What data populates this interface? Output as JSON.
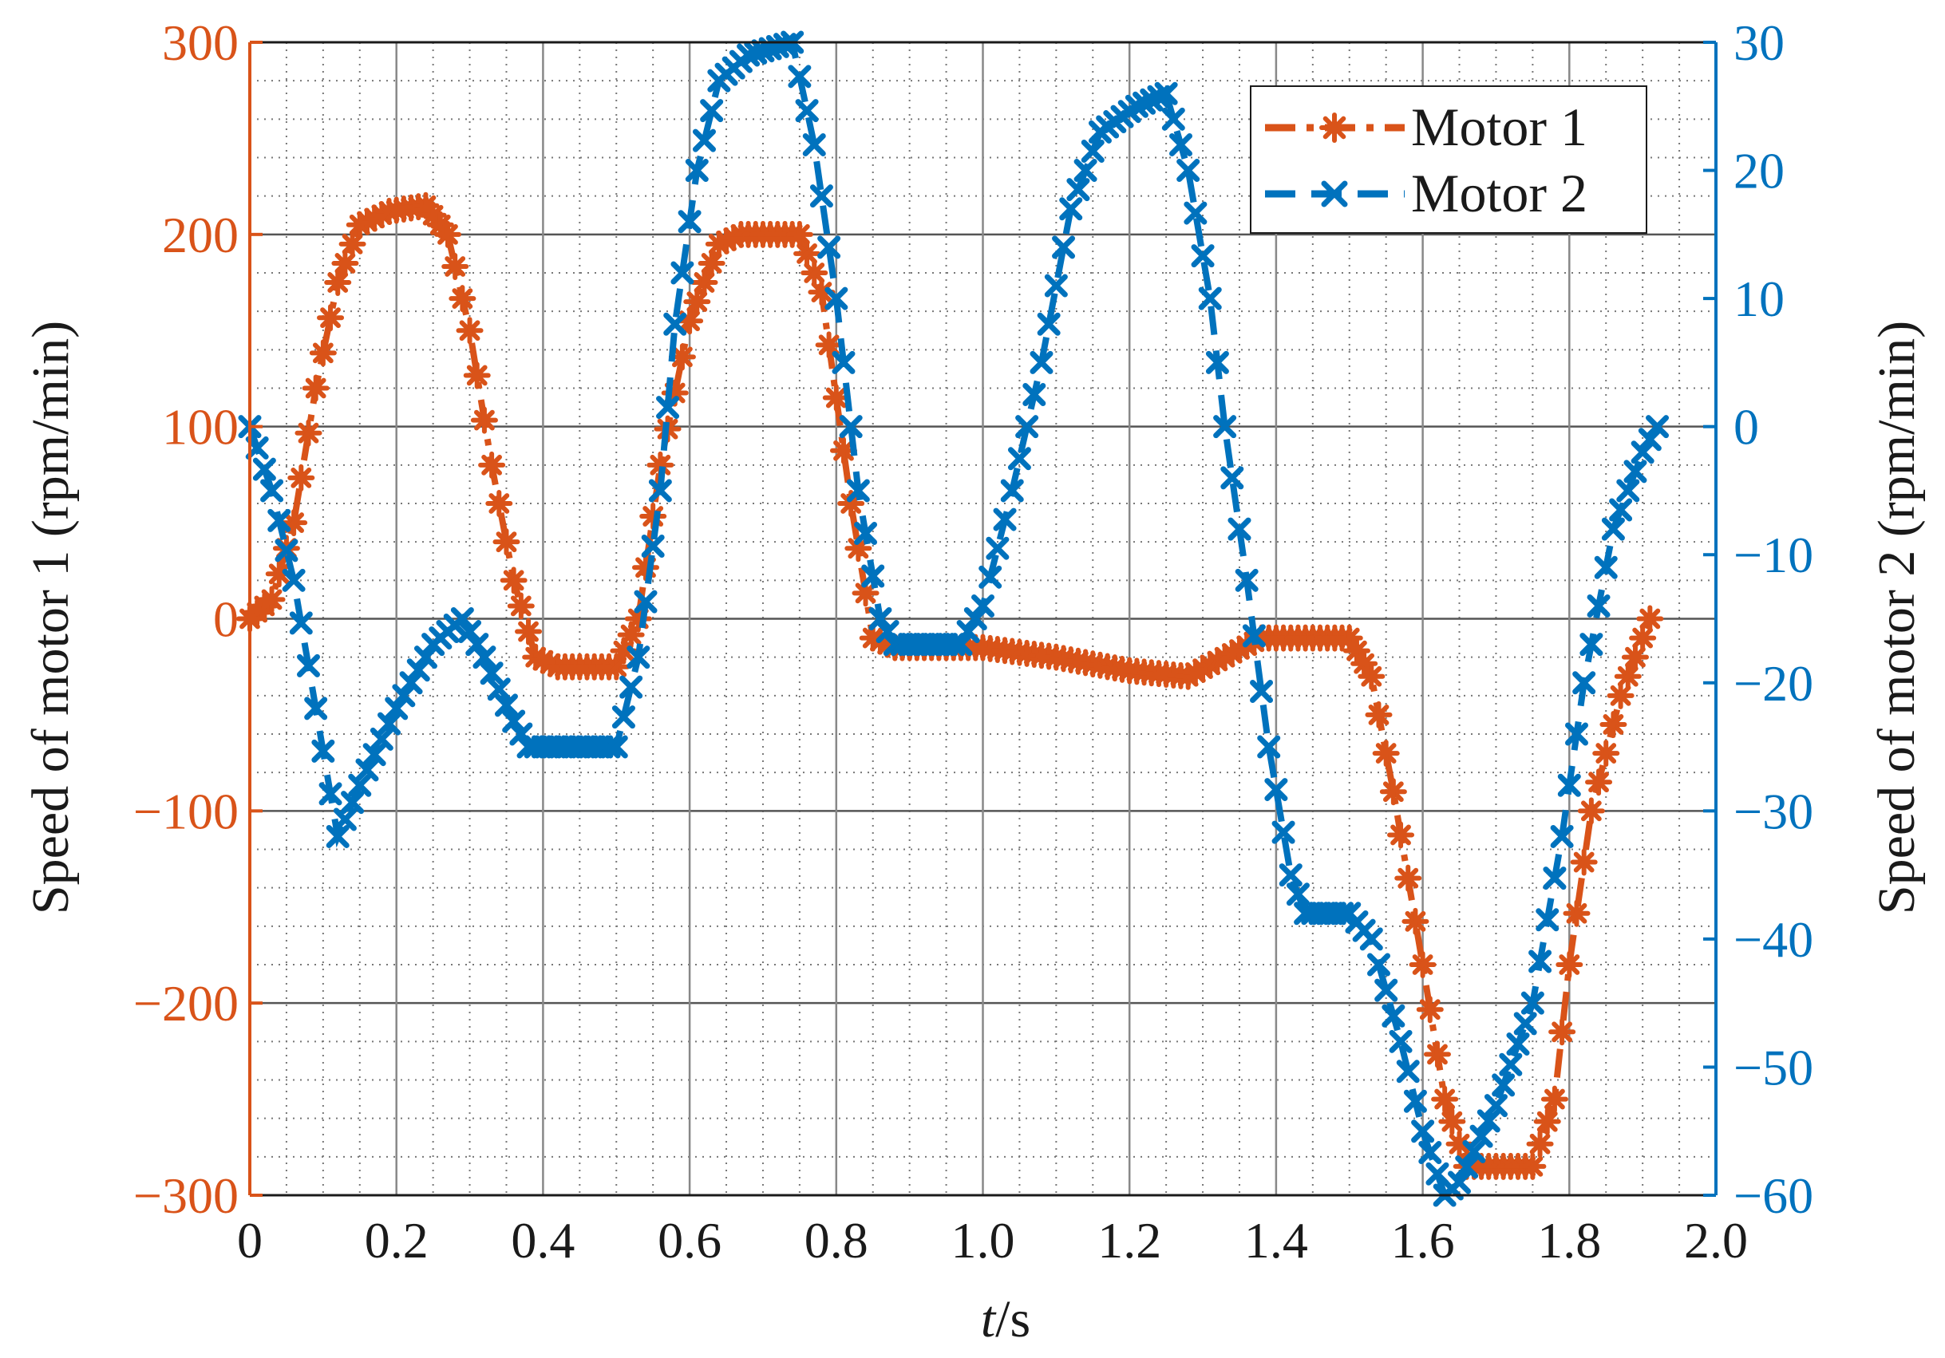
{
  "colors": {
    "motor1": "#D95319",
    "motor2": "#0072BD",
    "text": "#1a1a1a",
    "grid_major": "#555555",
    "grid_minor": "#777777"
  },
  "chart_data": {
    "type": "line",
    "xlabel_italic": "t",
    "xlabel_rest": "/s",
    "ylabel_left": "Speed of motor 1 (rpm/min)",
    "ylabel_right": "Speed of motor 2 (rpm/min)",
    "xlim": [
      0,
      2.0
    ],
    "ylim_left": [
      -300,
      300
    ],
    "ylim_right": [
      -60,
      30
    ],
    "x_ticks": [
      0,
      0.2,
      0.4,
      0.6,
      0.8,
      1.0,
      1.2,
      1.4,
      1.6,
      1.8,
      2.0
    ],
    "x_tick_labels": [
      "0",
      "0.2",
      "0.4",
      "0.6",
      "0.8",
      "1.0",
      "1.2",
      "1.4",
      "1.6",
      "1.8",
      "2.0"
    ],
    "y_left_ticks": [
      -300,
      -200,
      -100,
      0,
      100,
      200,
      300
    ],
    "y_left_tick_labels": [
      "−300",
      "−200",
      "−100",
      "0",
      "100",
      "200",
      "300"
    ],
    "y_right_ticks": [
      -60,
      -50,
      -40,
      -30,
      -20,
      -10,
      0,
      10,
      20,
      30
    ],
    "y_right_tick_labels": [
      "−60",
      "−50",
      "−40",
      "−30",
      "−20",
      "−10",
      "0",
      "10",
      "20",
      "30"
    ],
    "grid": true,
    "legend_position": "top-right",
    "legend": [
      "Motor 1",
      "Motor 2"
    ],
    "series": [
      {
        "name": "Motor 1",
        "axis": "left",
        "marker": "asterisk",
        "line_style": "dash-dot",
        "keypoints": [
          [
            0,
            0
          ],
          [
            0.03,
            10
          ],
          [
            0.06,
            50
          ],
          [
            0.09,
            120
          ],
          [
            0.12,
            175
          ],
          [
            0.15,
            205
          ],
          [
            0.19,
            212
          ],
          [
            0.24,
            215
          ],
          [
            0.27,
            200
          ],
          [
            0.3,
            150
          ],
          [
            0.33,
            80
          ],
          [
            0.36,
            20
          ],
          [
            0.39,
            -20
          ],
          [
            0.42,
            -25
          ],
          [
            0.5,
            -25
          ],
          [
            0.53,
            0
          ],
          [
            0.56,
            80
          ],
          [
            0.6,
            155
          ],
          [
            0.64,
            195
          ],
          [
            0.67,
            200
          ],
          [
            0.75,
            200
          ],
          [
            0.78,
            170
          ],
          [
            0.82,
            60
          ],
          [
            0.85,
            -10
          ],
          [
            0.88,
            -15
          ],
          [
            0.92,
            -15
          ],
          [
            1.0,
            -15
          ],
          [
            1.1,
            -20
          ],
          [
            1.2,
            -27
          ],
          [
            1.28,
            -30
          ],
          [
            1.33,
            -20
          ],
          [
            1.38,
            -10
          ],
          [
            1.5,
            -10
          ],
          [
            1.53,
            -30
          ],
          [
            1.56,
            -90
          ],
          [
            1.6,
            -180
          ],
          [
            1.63,
            -250
          ],
          [
            1.66,
            -285
          ],
          [
            1.75,
            -285
          ],
          [
            1.78,
            -250
          ],
          [
            1.8,
            -180
          ],
          [
            1.83,
            -100
          ],
          [
            1.87,
            -40
          ],
          [
            1.91,
            0
          ]
        ]
      },
      {
        "name": "Motor 2",
        "axis": "right",
        "marker": "x",
        "line_style": "dashed",
        "keypoints": [
          [
            0,
            0
          ],
          [
            0.03,
            -5
          ],
          [
            0.06,
            -12
          ],
          [
            0.09,
            -22
          ],
          [
            0.12,
            -32
          ],
          [
            0.15,
            -28
          ],
          [
            0.2,
            -22
          ],
          [
            0.25,
            -17
          ],
          [
            0.29,
            -15
          ],
          [
            0.32,
            -18
          ],
          [
            0.36,
            -23
          ],
          [
            0.38,
            -25
          ],
          [
            0.5,
            -25
          ],
          [
            0.53,
            -18
          ],
          [
            0.56,
            -5
          ],
          [
            0.58,
            8
          ],
          [
            0.61,
            20
          ],
          [
            0.64,
            27
          ],
          [
            0.68,
            29
          ],
          [
            0.74,
            30
          ],
          [
            0.77,
            22
          ],
          [
            0.8,
            10
          ],
          [
            0.83,
            -5
          ],
          [
            0.86,
            -15
          ],
          [
            0.88,
            -17
          ],
          [
            0.97,
            -17
          ],
          [
            1.0,
            -14
          ],
          [
            1.04,
            -5
          ],
          [
            1.08,
            5
          ],
          [
            1.12,
            17
          ],
          [
            1.16,
            23
          ],
          [
            1.21,
            25
          ],
          [
            1.25,
            26
          ],
          [
            1.28,
            20
          ],
          [
            1.31,
            10
          ],
          [
            1.33,
            0
          ],
          [
            1.36,
            -12
          ],
          [
            1.39,
            -25
          ],
          [
            1.42,
            -35
          ],
          [
            1.44,
            -38
          ],
          [
            1.5,
            -38
          ],
          [
            1.53,
            -40
          ],
          [
            1.57,
            -48
          ],
          [
            1.6,
            -55
          ],
          [
            1.63,
            -60
          ],
          [
            1.65,
            -59
          ],
          [
            1.7,
            -53
          ],
          [
            1.75,
            -45
          ],
          [
            1.79,
            -32
          ],
          [
            1.82,
            -20
          ],
          [
            1.86,
            -8
          ],
          [
            1.9,
            -2
          ],
          [
            1.92,
            0
          ]
        ]
      }
    ]
  }
}
